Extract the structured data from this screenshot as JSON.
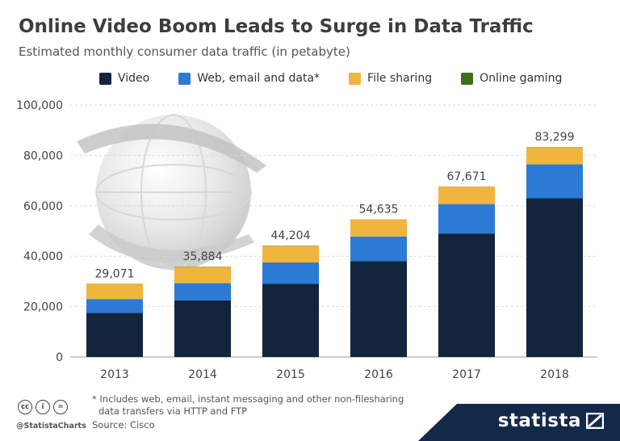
{
  "header": {
    "title": "Online Video Boom Leads to Surge in Data Traffic",
    "subtitle": "Estimated monthly consumer data traffic (in petabyte)"
  },
  "legend": [
    {
      "label": "Video",
      "color": "#12253d"
    },
    {
      "label": "Web, email and data*",
      "color": "#2b7ad6"
    },
    {
      "label": "File sharing",
      "color": "#f0b53d"
    },
    {
      "label": "Online gaming",
      "color": "#3e6e1e"
    }
  ],
  "chart_data": {
    "type": "bar",
    "stacked": true,
    "categories": [
      "2013",
      "2014",
      "2015",
      "2016",
      "2017",
      "2018"
    ],
    "series": [
      {
        "name": "Video",
        "color": "#12253d",
        "values": [
          17500,
          22500,
          29000,
          38000,
          49000,
          63000
        ]
      },
      {
        "name": "Web, email and data*",
        "color": "#2b7ad6",
        "values": [
          5500,
          6800,
          8500,
          9800,
          11700,
          13500
        ]
      },
      {
        "name": "File sharing",
        "color": "#f0b53d",
        "values": [
          6000,
          6500,
          6600,
          6800,
          6900,
          6700
        ]
      },
      {
        "name": "Online gaming",
        "color": "#3e6e1e",
        "values": [
          71,
          84,
          104,
          35,
          71,
          99
        ]
      }
    ],
    "totals": [
      "29,071",
      "35,884",
      "44,204",
      "54,635",
      "67,671",
      "83,299"
    ],
    "ylim": [
      0,
      100000
    ],
    "yticks": [
      "0",
      "20,000",
      "40,000",
      "60,000",
      "80,000",
      "100,000"
    ],
    "yticks_values": [
      0,
      20000,
      40000,
      60000,
      80000,
      100000
    ],
    "grid": true,
    "legend_position": "top"
  },
  "footer": {
    "footnote_line1": "* Includes web, email, instant messaging and other non-filesharing",
    "footnote_line2": "data transfers via HTTP and FTP",
    "source": "Source: Cisco",
    "handle": "@StatistaCharts",
    "brand": "statista"
  }
}
